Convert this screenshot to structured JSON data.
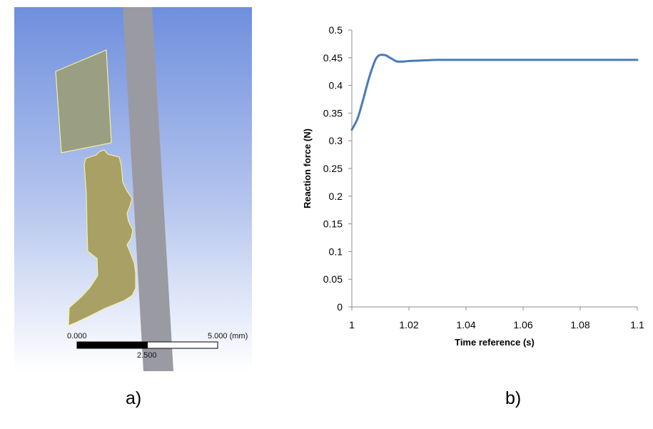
{
  "panel_a": {
    "scale_bar": {
      "label_start": "0.000",
      "label_end": "5.000 (mm)",
      "label_mid": "2.500"
    },
    "caption": "a)",
    "colors": {
      "background_top": "#7090dd",
      "background_bottom": "#ffffff",
      "tool_strip": "#9a9aa2",
      "upper_part": "#9a9e82",
      "lower_part": "#a8a064",
      "outline": "#f2f0a0"
    }
  },
  "panel_b": {
    "caption": "b)"
  },
  "chart_data": {
    "type": "line",
    "xlabel": "Time reference (s)",
    "ylabel": "Reaction force (N)",
    "xlim": [
      1,
      1.1
    ],
    "ylim": [
      0,
      0.5
    ],
    "x_ticks": [
      "1",
      "1.02",
      "1.04",
      "1.06",
      "1.08",
      "1.1"
    ],
    "y_ticks": [
      "0",
      "0.05",
      "0.1",
      "0.15",
      "0.2",
      "0.25",
      "0.3",
      "0.35",
      "0.4",
      "0.45",
      "0.5"
    ],
    "grid": false,
    "series": [
      {
        "color": "#4a7ab5",
        "x": [
          1.0,
          1.002,
          1.004,
          1.006,
          1.008,
          1.009,
          1.01,
          1.011,
          1.012,
          1.013,
          1.014,
          1.015,
          1.016,
          1.018,
          1.02,
          1.025,
          1.03,
          1.04,
          1.06,
          1.08,
          1.1
        ],
        "y": [
          0.32,
          0.34,
          0.375,
          0.413,
          0.443,
          0.452,
          0.455,
          0.455,
          0.454,
          0.451,
          0.448,
          0.445,
          0.443,
          0.443,
          0.444,
          0.445,
          0.446,
          0.446,
          0.446,
          0.446,
          0.446
        ]
      }
    ]
  }
}
